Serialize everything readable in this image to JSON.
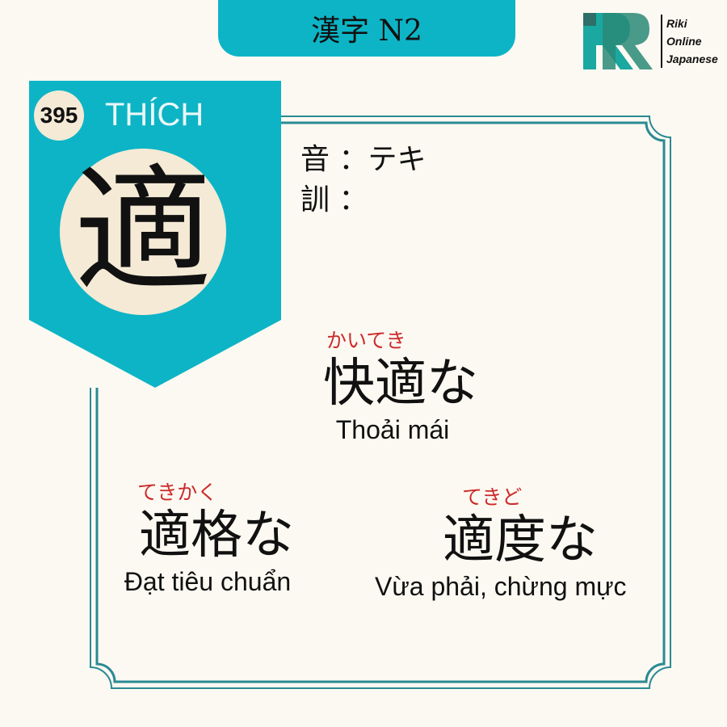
{
  "header": {
    "title": "漢字 N2"
  },
  "logo": {
    "line1": "Riki",
    "line2": "Online",
    "line3": "Japanese"
  },
  "kanji": {
    "number": "395",
    "han_viet": "THÍCH",
    "character": "適",
    "on_label": "音 ：",
    "on_reading": "テキ",
    "kun_label": "訓 ：",
    "kun_reading": ""
  },
  "words": [
    {
      "furigana": "かいてき",
      "kanji": "快適な",
      "meaning": "Thoải mái"
    },
    {
      "furigana": "てきかく",
      "kanji": "適格な",
      "meaning": "Đạt tiêu chuẩn"
    },
    {
      "furigana": "てきど",
      "kanji": "適度な",
      "meaning": "Vừa phải, chừng mực"
    }
  ],
  "colors": {
    "teal": "#0db4c6",
    "cream": "#f5ead6",
    "frame": "#2a8a94",
    "furigana": "#cc2a2a"
  }
}
